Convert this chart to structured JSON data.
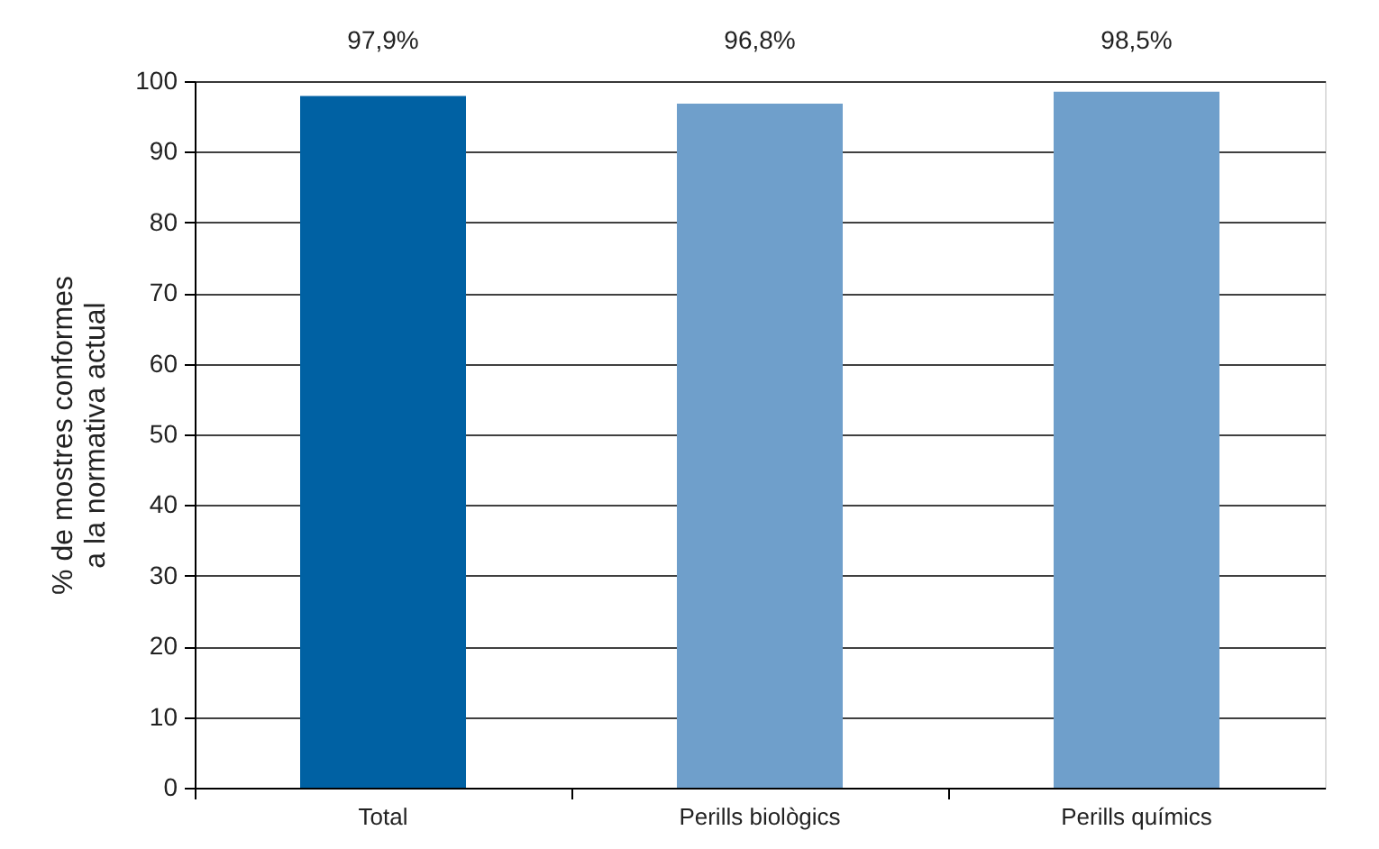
{
  "chart_data": {
    "type": "bar",
    "ylabel": "% de mostres conformes\na la normativa actual",
    "categories": [
      "Total",
      "Perills biològics",
      "Perills químics"
    ],
    "values": [
      97.9,
      96.8,
      98.5
    ],
    "colors": [
      "#0061a3",
      "#6f9fcb",
      "#6f9fcb"
    ],
    "value_labels": [
      "97,9%",
      "96,8%",
      "98,5%"
    ],
    "ylim": [
      0,
      100
    ],
    "yticks": [
      0,
      10,
      20,
      30,
      40,
      50,
      60,
      70,
      80,
      90,
      100
    ],
    "grid": "y"
  }
}
